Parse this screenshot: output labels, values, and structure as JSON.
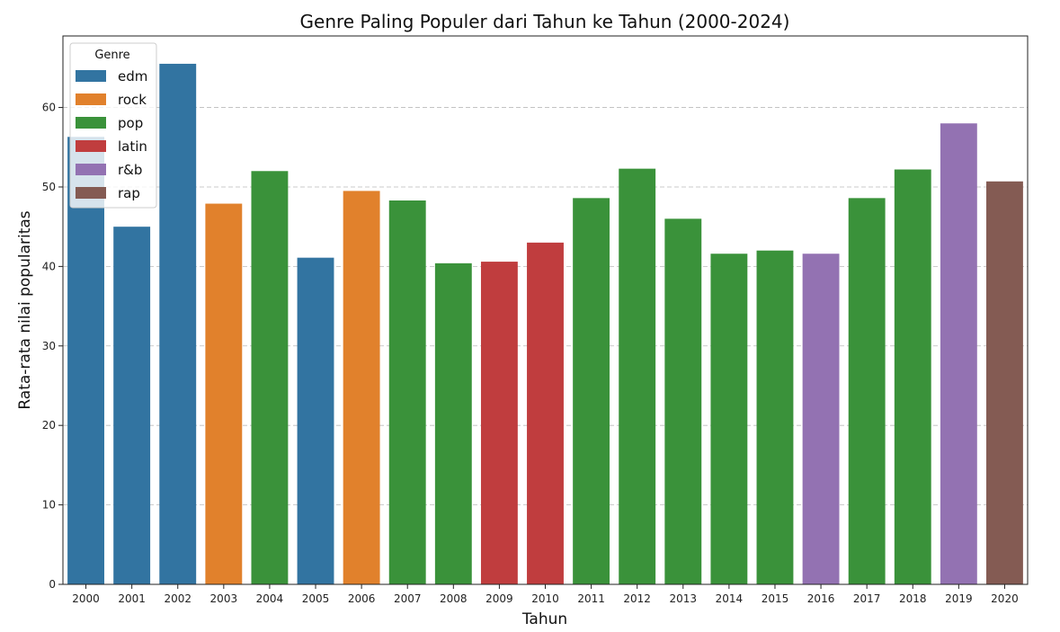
{
  "chart_data": {
    "type": "bar",
    "title": "Genre Paling Populer dari Tahun ke Tahun (2000-2024)",
    "xlabel": "Tahun",
    "ylabel": "Rata-rata nilai popularitas",
    "ylim": [
      0,
      69
    ],
    "yticks": [
      0,
      10,
      20,
      30,
      40,
      50,
      60
    ],
    "grid": "horizontal dashed",
    "legend": {
      "title": "Genre",
      "placement": "top-left",
      "entries": [
        {
          "name": "edm",
          "color": "#3274a1"
        },
        {
          "name": "rock",
          "color": "#e1812c"
        },
        {
          "name": "pop",
          "color": "#3a923a"
        },
        {
          "name": "latin",
          "color": "#c03d3e"
        },
        {
          "name": "r&b",
          "color": "#9372b2"
        },
        {
          "name": "rap",
          "color": "#845b53"
        }
      ]
    },
    "categories": [
      "2000",
      "2001",
      "2002",
      "2003",
      "2004",
      "2005",
      "2006",
      "2007",
      "2008",
      "2009",
      "2010",
      "2011",
      "2012",
      "2013",
      "2014",
      "2015",
      "2016",
      "2017",
      "2018",
      "2019",
      "2020"
    ],
    "values": [
      56.3,
      45.0,
      65.5,
      47.9,
      52.0,
      41.1,
      49.5,
      48.3,
      40.4,
      40.6,
      43.0,
      48.6,
      52.3,
      46.0,
      41.6,
      42.0,
      41.6,
      48.6,
      52.2,
      58.0,
      50.7
    ],
    "genres": [
      "edm",
      "edm",
      "edm",
      "rock",
      "pop",
      "edm",
      "rock",
      "pop",
      "pop",
      "latin",
      "latin",
      "pop",
      "pop",
      "pop",
      "pop",
      "pop",
      "r&b",
      "pop",
      "pop",
      "r&b",
      "rap"
    ]
  }
}
